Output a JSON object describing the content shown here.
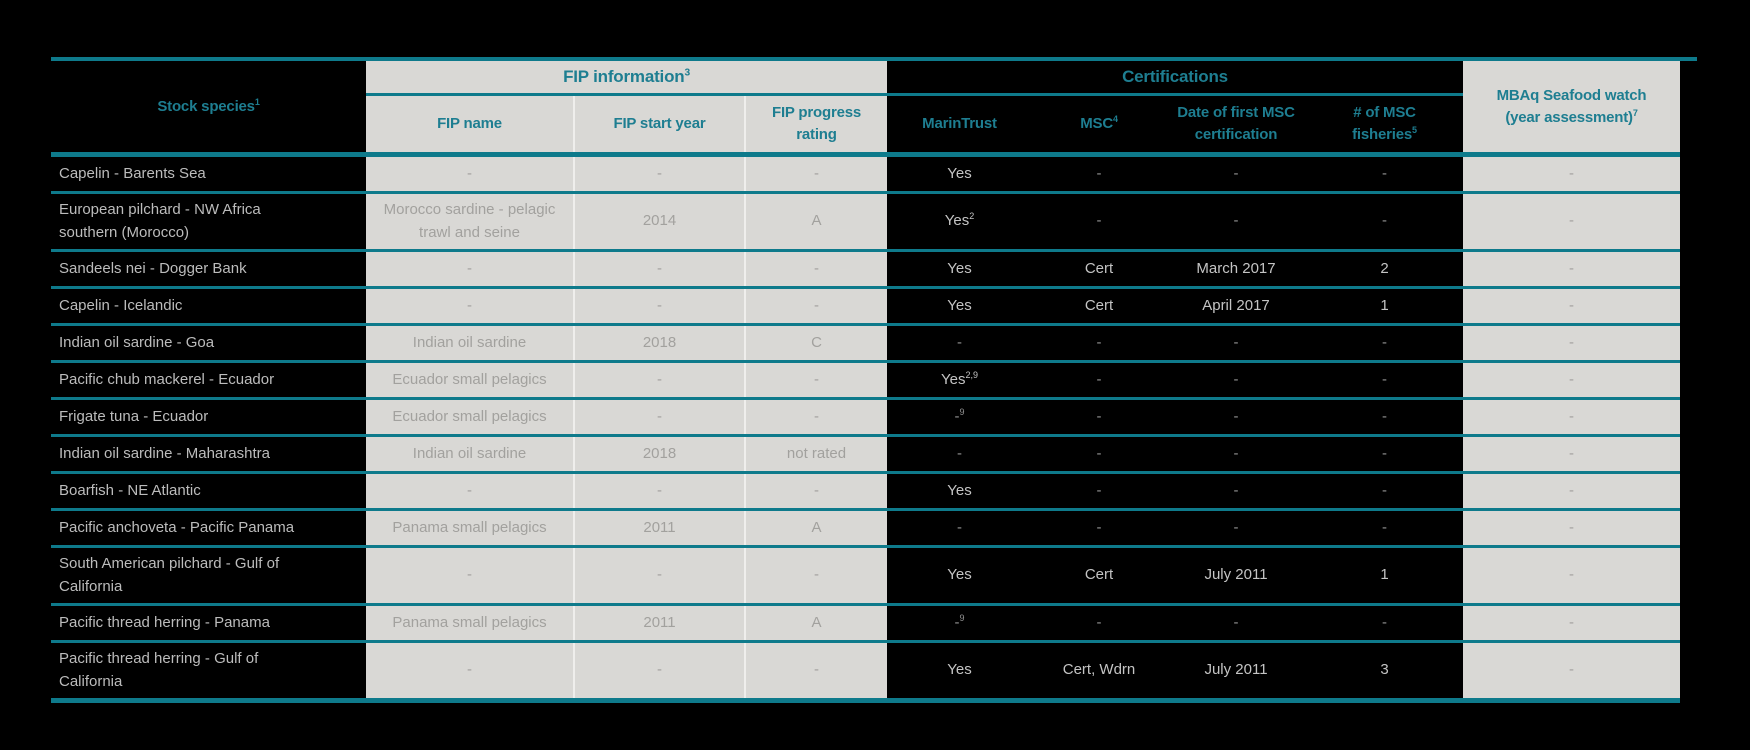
{
  "colors": {
    "accent_teal": "#0e7a8b",
    "header_text_teal": "#1e7e91",
    "cell_background_gray": "#d9d8d5",
    "muted_text_gray": "#a2a19e",
    "light_text_on_black": "#c4c4c4"
  },
  "header": {
    "stock_species": {
      "text": "Stock species",
      "sup": "1"
    },
    "fip_group": {
      "text": "FIP information",
      "sup": "3"
    },
    "cert_group": {
      "text": "Certifications"
    },
    "fip_name": {
      "text": "FIP name"
    },
    "fip_start_year": {
      "text": "FIP start year"
    },
    "fip_progress_rating": {
      "text": "FIP progress rating"
    },
    "marintrust": {
      "text": "MarinTrust"
    },
    "msc": {
      "text": "MSC",
      "sup": "4"
    },
    "msc_first_cert_date": {
      "text": "Date of first MSC certification"
    },
    "msc_fisheries_count": {
      "text": "# of MSC fisheries",
      "sup": "5"
    },
    "mbaq": {
      "text": "MBAq Seafood watch (year assessment)",
      "sup": "7"
    }
  },
  "rows": [
    {
      "species": "Capelin - Barents Sea",
      "fip_name": "-",
      "fip_start_year": "-",
      "fip_progress_rating": "-",
      "marintrust": {
        "text": "Yes"
      },
      "msc": "-",
      "msc_first_cert_date": "-",
      "msc_fisheries_count": "-",
      "mbaq": "-"
    },
    {
      "species": "European pilchard - NW Africa southern (Morocco)",
      "fip_name": "Morocco sardine - pelagic trawl and seine",
      "fip_start_year": "2014",
      "fip_progress_rating": "A",
      "marintrust": {
        "text": "Yes",
        "sup": "2"
      },
      "msc": "-",
      "msc_first_cert_date": "-",
      "msc_fisheries_count": "-",
      "mbaq": "-"
    },
    {
      "species": "Sandeels nei - Dogger Bank",
      "fip_name": "-",
      "fip_start_year": "-",
      "fip_progress_rating": "-",
      "marintrust": {
        "text": "Yes"
      },
      "msc": "Cert",
      "msc_first_cert_date": "March 2017",
      "msc_fisheries_count": "2",
      "mbaq": "-"
    },
    {
      "species": "Capelin - Icelandic",
      "fip_name": "-",
      "fip_start_year": "-",
      "fip_progress_rating": "-",
      "marintrust": {
        "text": "Yes"
      },
      "msc": "Cert",
      "msc_first_cert_date": "April 2017",
      "msc_fisheries_count": "1",
      "mbaq": "-"
    },
    {
      "species": "Indian oil sardine - Goa",
      "fip_name": "Indian oil sardine",
      "fip_start_year": "2018",
      "fip_progress_rating": "C",
      "marintrust": {
        "text": "-"
      },
      "msc": "-",
      "msc_first_cert_date": "-",
      "msc_fisheries_count": "-",
      "mbaq": "-"
    },
    {
      "species": "Pacific chub mackerel - Ecuador",
      "fip_name": "Ecuador small pelagics",
      "fip_start_year": "-",
      "fip_progress_rating": "-",
      "marintrust": {
        "text": "Yes",
        "sup": "2,9"
      },
      "msc": "-",
      "msc_first_cert_date": "-",
      "msc_fisheries_count": "-",
      "mbaq": "-"
    },
    {
      "species": "Frigate tuna - Ecuador",
      "fip_name": "Ecuador small pelagics",
      "fip_start_year": "-",
      "fip_progress_rating": "-",
      "marintrust": {
        "text": "-",
        "sup": "9"
      },
      "msc": "-",
      "msc_first_cert_date": "-",
      "msc_fisheries_count": "-",
      "mbaq": "-"
    },
    {
      "species": "Indian oil sardine - Maharashtra",
      "fip_name": "Indian oil sardine",
      "fip_start_year": "2018",
      "fip_progress_rating": "not rated",
      "marintrust": {
        "text": "-"
      },
      "msc": "-",
      "msc_first_cert_date": "-",
      "msc_fisheries_count": "-",
      "mbaq": "-"
    },
    {
      "species": "Boarfish - NE Atlantic",
      "fip_name": "-",
      "fip_start_year": "-",
      "fip_progress_rating": "-",
      "marintrust": {
        "text": "Yes"
      },
      "msc": "-",
      "msc_first_cert_date": "-",
      "msc_fisheries_count": "-",
      "mbaq": "-"
    },
    {
      "species": "Pacific anchoveta - Pacific Panama",
      "fip_name": "Panama small pelagics",
      "fip_start_year": "2011",
      "fip_progress_rating": "A",
      "marintrust": {
        "text": "-"
      },
      "msc": "-",
      "msc_first_cert_date": "-",
      "msc_fisheries_count": "-",
      "mbaq": "-"
    },
    {
      "species": "South American pilchard - Gulf of California",
      "fip_name": "-",
      "fip_start_year": "-",
      "fip_progress_rating": "-",
      "marintrust": {
        "text": "Yes"
      },
      "msc": "Cert",
      "msc_first_cert_date": "July 2011",
      "msc_fisheries_count": "1",
      "mbaq": "-"
    },
    {
      "species": "Pacific thread herring - Panama",
      "fip_name": "Panama small pelagics",
      "fip_start_year": "2011",
      "fip_progress_rating": "A",
      "marintrust": {
        "text": "-",
        "sup": "9"
      },
      "msc": "-",
      "msc_first_cert_date": "-",
      "msc_fisheries_count": "-",
      "mbaq": "-"
    },
    {
      "species": "Pacific thread herring - Gulf of California",
      "fip_name": "-",
      "fip_start_year": "-",
      "fip_progress_rating": "-",
      "marintrust": {
        "text": "Yes"
      },
      "msc": "Cert, Wdrn",
      "msc_first_cert_date": "July 2011",
      "msc_fisheries_count": "3",
      "mbaq": "-"
    }
  ]
}
